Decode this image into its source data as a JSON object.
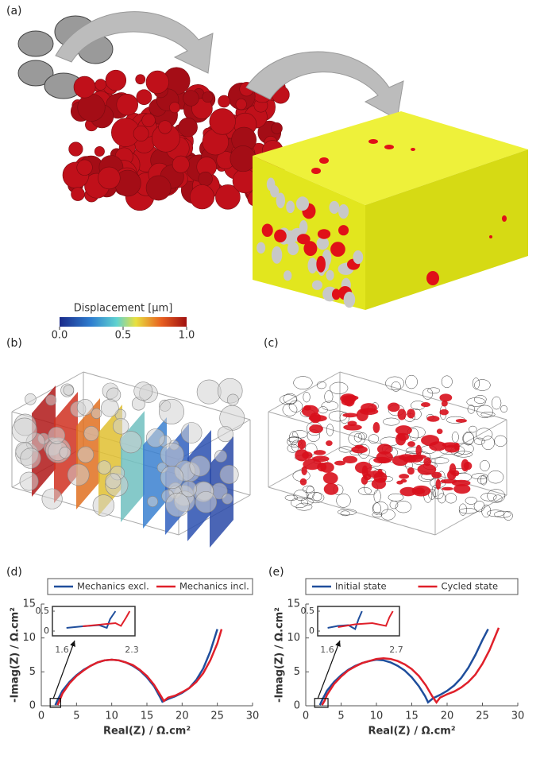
{
  "panels": {
    "a": "(a)",
    "b": "(b)",
    "c": "(c)",
    "d": "(d)",
    "e": "(e)"
  },
  "colorbar": {
    "label": "Displacement [μm]",
    "lim": [
      0,
      1
    ],
    "ticks": [
      {
        "value": 0,
        "label": "0.0"
      },
      {
        "value": 0.5,
        "label": "0.5"
      },
      {
        "value": 1,
        "label": "1.0"
      }
    ]
  },
  "chart_data": [
    {
      "type": "line",
      "xlabel": "Real(Z) / Ω.cm²",
      "ylabel": "-Imag(Z) / Ω.cm²",
      "xlim": [
        0,
        30
      ],
      "ylim": [
        0,
        15
      ],
      "xticks": [
        0,
        5,
        10,
        15,
        20,
        25,
        30
      ],
      "yticks": [
        0,
        5,
        10,
        15
      ],
      "legend": "top-outside",
      "series": [
        {
          "name": "Mechanics excl.",
          "color": "#1f4e9c",
          "x": [
            2.0,
            2.3,
            3,
            4,
            5,
            6,
            7,
            8,
            9,
            10,
            11,
            12,
            13,
            14,
            15,
            16,
            16.8,
            17.2,
            18,
            19,
            20,
            21,
            22,
            23,
            24,
            25
          ],
          "values": [
            0.1,
            0.8,
            2.2,
            3.5,
            4.5,
            5.3,
            5.9,
            6.4,
            6.7,
            6.8,
            6.7,
            6.4,
            5.9,
            5.2,
            4.2,
            2.9,
            1.4,
            0.6,
            1.0,
            1.4,
            1.9,
            2.6,
            3.8,
            5.5,
            8.0,
            11.3
          ]
        },
        {
          "name": "Mechanics incl.",
          "color": "#e0202a",
          "x": [
            2.3,
            2.6,
            3,
            4,
            5,
            6,
            7,
            8,
            9,
            10,
            11,
            12,
            13,
            14,
            15,
            16,
            16.9,
            17.4,
            18,
            19,
            20,
            21,
            22,
            23,
            24,
            25,
            25.6
          ],
          "values": [
            0.1,
            0.8,
            1.8,
            3.3,
            4.4,
            5.2,
            5.9,
            6.4,
            6.7,
            6.8,
            6.7,
            6.4,
            6.0,
            5.3,
            4.4,
            3.1,
            1.6,
            0.7,
            1.2,
            1.5,
            2.0,
            2.6,
            3.5,
            4.8,
            6.7,
            9.2,
            11.3
          ]
        }
      ],
      "inset": {
        "xlim": [
          1.6,
          2.3
        ],
        "ylim": [
          0,
          0.5
        ],
        "yticks": [
          0,
          0.5
        ],
        "series": [
          {
            "color": "#1f4e9c",
            "x": [
              1.7,
              1.85,
              2.0,
              2.07,
              2.1,
              2.15
            ],
            "values": [
              0.08,
              0.12,
              0.15,
              0.08,
              0.3,
              0.5
            ]
          },
          {
            "color": "#e0202a",
            "x": [
              1.85,
              2.0,
              2.15,
              2.2,
              2.25,
              2.28
            ],
            "values": [
              0.12,
              0.16,
              0.2,
              0.13,
              0.35,
              0.5
            ]
          }
        ]
      }
    },
    {
      "type": "line",
      "xlabel": "Real(Z) / Ω.cm²",
      "ylabel": "-Imag(Z) / Ω.cm²",
      "xlim": [
        0,
        30
      ],
      "ylim": [
        0,
        15
      ],
      "xticks": [
        0,
        5,
        10,
        15,
        20,
        25,
        30
      ],
      "yticks": [
        0,
        5,
        10,
        15
      ],
      "legend": "top-outside",
      "series": [
        {
          "name": "Initial state",
          "color": "#1f4e9c",
          "x": [
            2.0,
            2.3,
            3,
            4,
            5,
            6,
            7,
            8,
            9,
            10,
            11,
            12,
            13,
            14,
            15,
            16,
            16.9,
            17.3,
            18,
            19,
            20,
            21,
            22,
            23,
            24,
            25,
            25.8
          ],
          "values": [
            0.1,
            0.8,
            2.2,
            3.5,
            4.5,
            5.3,
            5.9,
            6.3,
            6.6,
            6.8,
            6.7,
            6.4,
            5.9,
            5.2,
            4.2,
            2.9,
            1.4,
            0.5,
            1.1,
            1.6,
            2.2,
            3.0,
            4.1,
            5.6,
            7.5,
            9.7,
            11.3
          ]
        },
        {
          "name": "Cycled state",
          "color": "#e0202a",
          "x": [
            2.3,
            2.7,
            3,
            4,
            5,
            6,
            7,
            8,
            9,
            10,
            11,
            12,
            13,
            14,
            15,
            16,
            17,
            17.9,
            18.5,
            19,
            20,
            21,
            22,
            23,
            24,
            25,
            26,
            27.3
          ],
          "values": [
            0.1,
            0.8,
            1.6,
            3.2,
            4.3,
            5.2,
            5.8,
            6.3,
            6.6,
            6.9,
            7.0,
            6.9,
            6.6,
            6.1,
            5.4,
            4.4,
            3.0,
            1.4,
            0.5,
            1.2,
            1.7,
            2.1,
            2.7,
            3.5,
            4.6,
            6.2,
            8.2,
            11.5
          ]
        }
      ],
      "inset": {
        "xlim": [
          1.6,
          2.7
        ],
        "ylim": [
          0,
          0.5
        ],
        "yticks": [
          0,
          0.5
        ],
        "series": [
          {
            "color": "#1f4e9c",
            "x": [
              1.7,
              1.85,
              2.0,
              2.1,
              2.15,
              2.2
            ],
            "values": [
              0.08,
              0.13,
              0.15,
              0.05,
              0.3,
              0.5
            ]
          },
          {
            "color": "#e0202a",
            "x": [
              1.85,
              2.1,
              2.35,
              2.55,
              2.6,
              2.65
            ],
            "values": [
              0.1,
              0.17,
              0.2,
              0.13,
              0.35,
              0.5
            ]
          }
        ]
      }
    }
  ]
}
